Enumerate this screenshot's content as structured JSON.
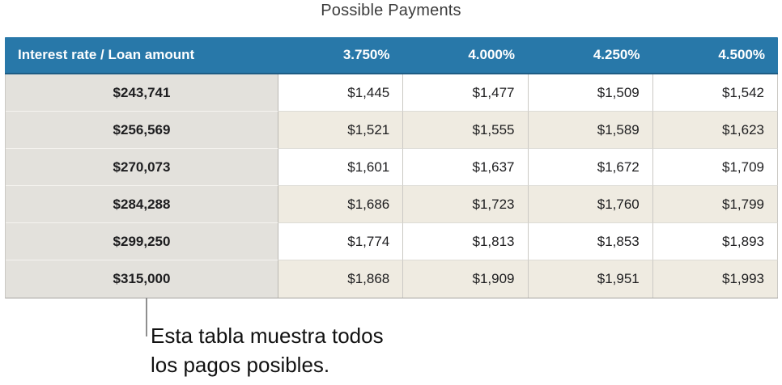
{
  "title": "Possible Payments",
  "table": {
    "corner_label": "Interest rate / Loan amount",
    "columns": [
      "3.750%",
      "4.000%",
      "4.250%",
      "4.500%"
    ],
    "rows": [
      {
        "loan_amount": "$243,741",
        "payments": [
          "$1,445",
          "$1,477",
          "$1,509",
          "$1,542"
        ]
      },
      {
        "loan_amount": "$256,569",
        "payments": [
          "$1,521",
          "$1,555",
          "$1,589",
          "$1,623"
        ]
      },
      {
        "loan_amount": "$270,073",
        "payments": [
          "$1,601",
          "$1,637",
          "$1,672",
          "$1,709"
        ]
      },
      {
        "loan_amount": "$284,288",
        "payments": [
          "$1,686",
          "$1,723",
          "$1,760",
          "$1,799"
        ]
      },
      {
        "loan_amount": "$299,250",
        "payments": [
          "$1,774",
          "$1,813",
          "$1,853",
          "$1,893"
        ]
      },
      {
        "loan_amount": "$315,000",
        "payments": [
          "$1,868",
          "$1,909",
          "$1,951",
          "$1,993"
        ]
      }
    ]
  },
  "callout": {
    "line1": "Esta tabla muestra todos",
    "line2": "los pagos posibles."
  },
  "colors": {
    "header_bg": "#2878A9",
    "header_edge": "#1D5C84",
    "header_text": "#FFFFFF",
    "col1_bg": "#E3E1DC",
    "col1_border": "#B9B7B2",
    "col1_divider": "#F6F4F0",
    "row_alt_bg": "#EFEBE1",
    "grid_border": "#CBC9C4",
    "row_divider": "#DDDBD6",
    "table_bottom": "#A5A39F",
    "callout_line": "#8F8F8F",
    "body_text": "#1D1D1F",
    "title_color": "#3B3B3B"
  },
  "chart_data": {
    "type": "table",
    "title": "Possible Payments",
    "row_header_label": "Interest rate / Loan amount",
    "columns": [
      "3.750%",
      "4.000%",
      "4.250%",
      "4.500%"
    ],
    "row_labels": [
      "$243,741",
      "$256,569",
      "$270,073",
      "$284,288",
      "$299,250",
      "$315,000"
    ],
    "values": [
      [
        1445,
        1477,
        1509,
        1542
      ],
      [
        1521,
        1555,
        1589,
        1623
      ],
      [
        1601,
        1637,
        1672,
        1709
      ],
      [
        1686,
        1723,
        1760,
        1799
      ],
      [
        1774,
        1813,
        1853,
        1893
      ],
      [
        1868,
        1909,
        1951,
        1993
      ]
    ],
    "annotation": "Esta tabla muestra todos los pagos posibles."
  }
}
